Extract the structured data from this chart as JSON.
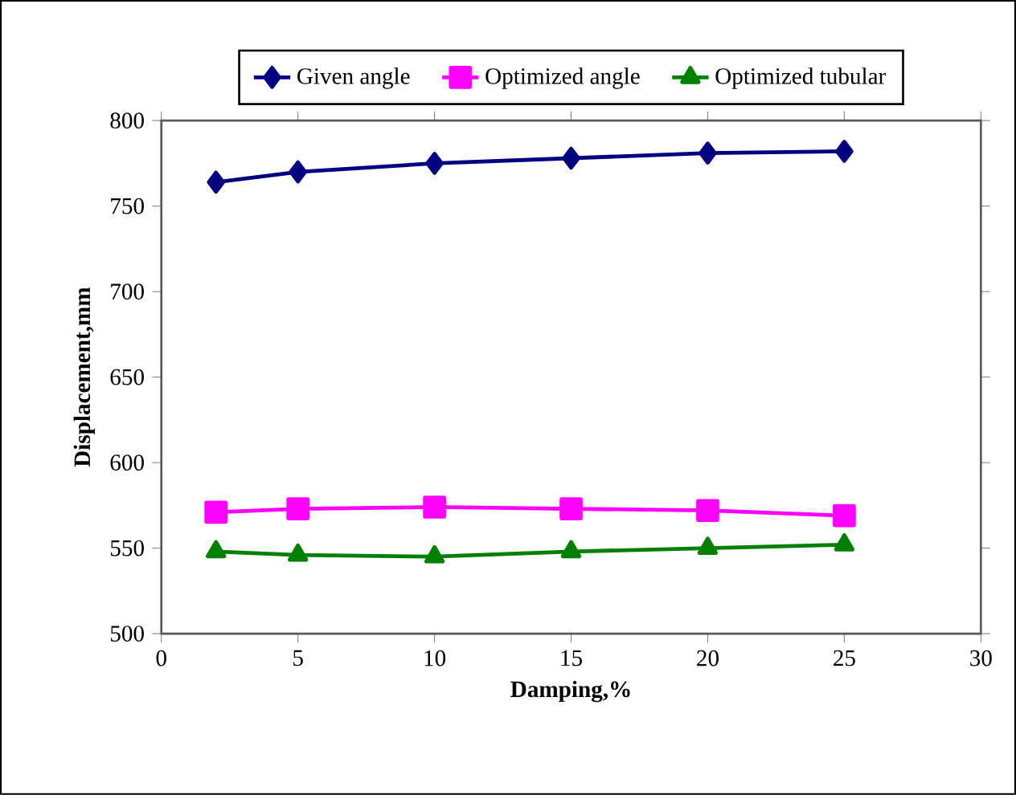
{
  "chart_data": {
    "type": "line",
    "xlabel": "Damping,%",
    "ylabel": "Displacement,mm",
    "x": [
      2,
      5,
      10,
      15,
      20,
      25
    ],
    "series": [
      {
        "name": "Given angle",
        "color": "#000080",
        "marker": "diamond",
        "values": [
          764,
          770,
          775,
          778,
          781,
          782
        ]
      },
      {
        "name": "Optimized angle",
        "color": "#ff00ff",
        "marker": "square",
        "values": [
          571,
          573,
          574,
          573,
          572,
          569
        ]
      },
      {
        "name": "Optimized tubular",
        "color": "#008000",
        "marker": "triangle",
        "values": [
          548,
          546,
          545,
          548,
          550,
          552
        ]
      }
    ],
    "xlim": [
      0,
      30
    ],
    "xticks": [
      0,
      5,
      10,
      15,
      20,
      25,
      30
    ],
    "ylim": [
      500,
      800
    ],
    "yticks": [
      500,
      550,
      600,
      650,
      700,
      750,
      800
    ],
    "legend": "top",
    "grid": false,
    "line_style": "solid"
  }
}
